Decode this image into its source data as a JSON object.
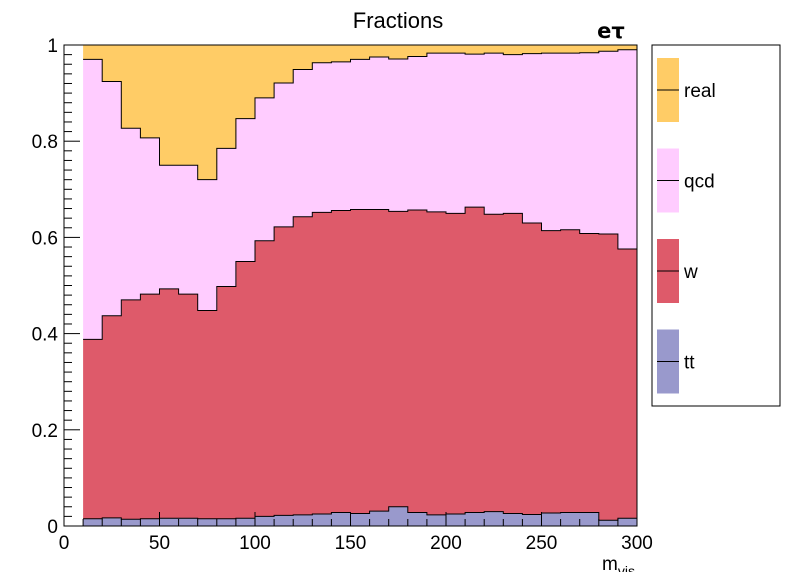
{
  "chart_data": {
    "type": "area",
    "stacked": true,
    "histogram_steps": true,
    "title": "Fractions",
    "channel_label": "eτ",
    "xlabel": "m",
    "xlabel_subscript": "vis",
    "ylabel": "",
    "xlim": [
      0,
      300
    ],
    "ylim": [
      0,
      1
    ],
    "x_ticks": [
      "0",
      "50",
      "100",
      "150",
      "200",
      "250",
      "300"
    ],
    "y_ticks": [
      "0",
      "0.2",
      "0.4",
      "0.6",
      "0.8",
      "1"
    ],
    "bin_edges": [
      10,
      20,
      30,
      40,
      50,
      60,
      70,
      80,
      90,
      100,
      110,
      120,
      130,
      140,
      150,
      160,
      170,
      180,
      190,
      200,
      210,
      220,
      230,
      240,
      250,
      260,
      270,
      280,
      290,
      300
    ],
    "grid": false,
    "legend_position": "right",
    "series": [
      {
        "name": "tt",
        "color": "#9999cc",
        "values": [
          0.015,
          0.017,
          0.014,
          0.015,
          0.016,
          0.016,
          0.015,
          0.015,
          0.016,
          0.02,
          0.022,
          0.023,
          0.025,
          0.028,
          0.026,
          0.031,
          0.04,
          0.028,
          0.023,
          0.025,
          0.028,
          0.03,
          0.026,
          0.024,
          0.027,
          0.028,
          0.028,
          0.012,
          0.016
        ]
      },
      {
        "name": "w",
        "color": "#de5a6a",
        "values": [
          0.373,
          0.42,
          0.456,
          0.467,
          0.477,
          0.466,
          0.433,
          0.483,
          0.534,
          0.573,
          0.6,
          0.62,
          0.627,
          0.628,
          0.632,
          0.627,
          0.614,
          0.629,
          0.63,
          0.625,
          0.635,
          0.618,
          0.624,
          0.606,
          0.587,
          0.588,
          0.58,
          0.595,
          0.56
        ]
      },
      {
        "name": "qcd",
        "color": "#ffccff",
        "values": [
          0.582,
          0.487,
          0.357,
          0.325,
          0.257,
          0.268,
          0.272,
          0.287,
          0.297,
          0.297,
          0.299,
          0.306,
          0.311,
          0.309,
          0.312,
          0.317,
          0.317,
          0.319,
          0.33,
          0.333,
          0.318,
          0.335,
          0.33,
          0.352,
          0.369,
          0.367,
          0.376,
          0.38,
          0.414
        ]
      },
      {
        "name": "real",
        "color": "#ffcc66",
        "values": [
          0.03,
          0.076,
          0.173,
          0.193,
          0.25,
          0.25,
          0.28,
          0.215,
          0.153,
          0.11,
          0.079,
          0.051,
          0.037,
          0.035,
          0.03,
          0.025,
          0.029,
          0.024,
          0.017,
          0.017,
          0.019,
          0.017,
          0.02,
          0.018,
          0.017,
          0.017,
          0.016,
          0.013,
          0.01
        ]
      }
    ]
  }
}
